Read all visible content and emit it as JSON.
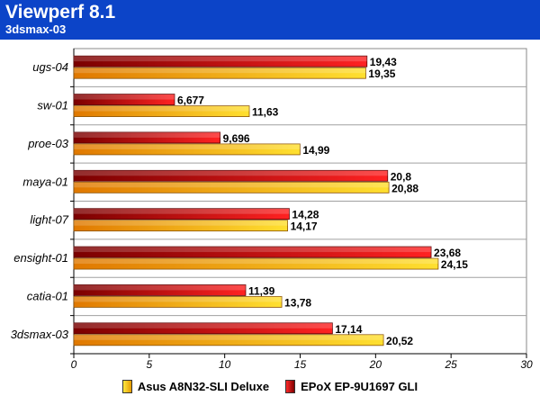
{
  "chart_data": {
    "type": "bar",
    "orientation": "horizontal",
    "title": "Viewperf 8.1",
    "subtitle": "3dsmax-03",
    "categories": [
      "ugs-04",
      "sw-01",
      "proe-03",
      "maya-01",
      "light-07",
      "ensight-01",
      "catia-01",
      "3dsmax-03"
    ],
    "series": [
      {
        "name": "EPoX EP-9U1697 GLI",
        "values": [
          19.43,
          6.677,
          9.696,
          20.8,
          14.28,
          23.68,
          11.39,
          17.14
        ],
        "labels": [
          "19,43",
          "6,677",
          "9,696",
          "20,8",
          "14,28",
          "23,68",
          "11,39",
          "17,14"
        ],
        "color": "#e01010"
      },
      {
        "name": "Asus A8N32-SLI Deluxe",
        "values": [
          19.35,
          11.63,
          14.99,
          20.88,
          14.17,
          24.15,
          13.78,
          20.52
        ],
        "labels": [
          "19,35",
          "11,63",
          "14,99",
          "20,88",
          "14,17",
          "24,15",
          "13,78",
          "20,52"
        ],
        "color": "#f5b800"
      }
    ],
    "xlim": [
      0,
      30
    ],
    "xticks": [
      0,
      5,
      10,
      15,
      20,
      25,
      30
    ],
    "grid": true,
    "legend_position": "bottom"
  },
  "legend": [
    {
      "label": "Asus A8N32-SLI Deluxe"
    },
    {
      "label": "EPoX EP-9U1697 GLI"
    }
  ]
}
